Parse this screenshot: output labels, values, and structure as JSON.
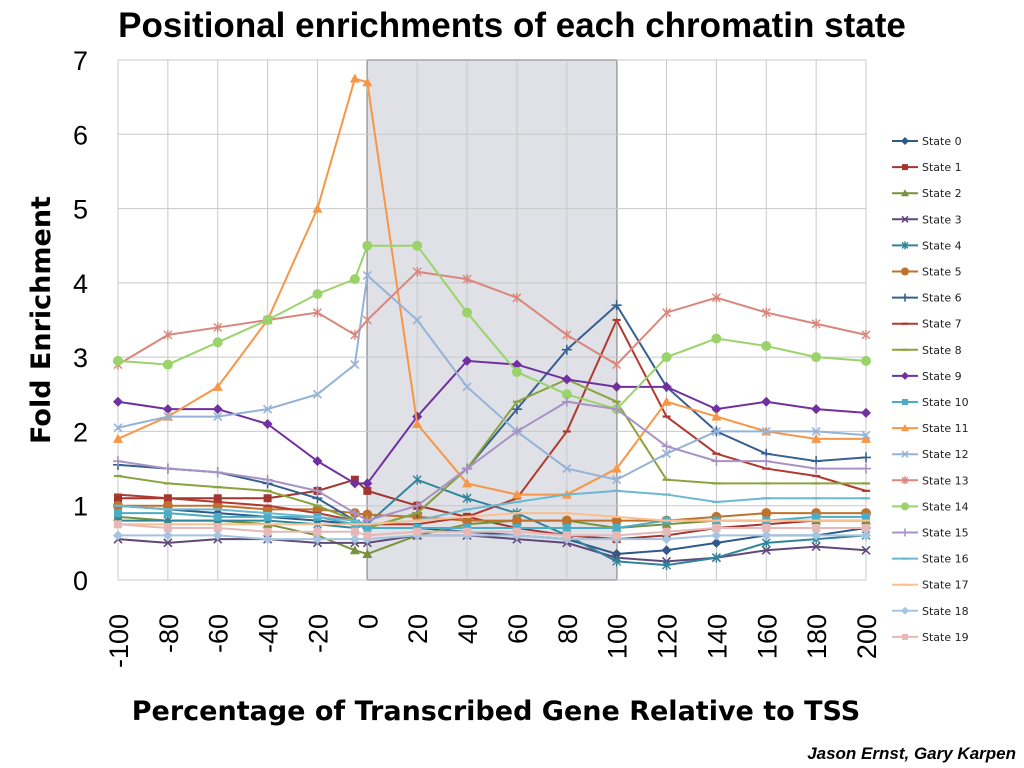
{
  "title": "Positional enrichments of each chromatin state",
  "credit": "Jason Ernst, Gary Karpen",
  "chart_data": {
    "type": "line",
    "title": "Positional enrichments of each chromatin state",
    "xlabel": "Percentage of Transcribed Gene Relative to TSS",
    "ylabel": "Fold Enrichment",
    "xlim": [
      -100,
      200
    ],
    "ylim": [
      0,
      7
    ],
    "xticks": [
      -100,
      -80,
      -60,
      -40,
      -20,
      0,
      20,
      40,
      60,
      80,
      100,
      120,
      140,
      160,
      180,
      200
    ],
    "yticks": [
      0,
      1,
      2,
      3,
      4,
      5,
      6,
      7
    ],
    "grid": true,
    "legend": "right",
    "shaded_region": [
      0,
      100
    ],
    "x": [
      -100,
      -80,
      -60,
      -40,
      -20,
      -5,
      0,
      20,
      40,
      60,
      80,
      100,
      120,
      140,
      160,
      180,
      200
    ],
    "series": [
      {
        "name": "State 0",
        "color": "#2e5a8a",
        "marker": "diamond",
        "values": [
          1.0,
          0.95,
          0.9,
          0.85,
          0.8,
          0.75,
          0.7,
          0.7,
          0.65,
          0.6,
          0.55,
          0.35,
          0.4,
          0.5,
          0.6,
          0.6,
          0.7
        ]
      },
      {
        "name": "State 1",
        "color": "#a3342e",
        "marker": "square",
        "values": [
          1.1,
          1.1,
          1.1,
          1.1,
          1.2,
          1.35,
          1.2,
          1.0,
          0.85,
          0.7,
          0.6,
          0.55,
          0.6,
          0.7,
          0.75,
          0.8,
          0.8
        ]
      },
      {
        "name": "State 2",
        "color": "#76923c",
        "marker": "triangle",
        "values": [
          0.85,
          0.8,
          0.8,
          0.75,
          0.6,
          0.4,
          0.35,
          0.6,
          0.75,
          0.8,
          0.8,
          0.7,
          0.75,
          0.8,
          0.8,
          0.8,
          0.8
        ]
      },
      {
        "name": "State 3",
        "color": "#5f497a",
        "marker": "x",
        "values": [
          0.55,
          0.5,
          0.55,
          0.55,
          0.5,
          0.5,
          0.5,
          0.6,
          0.6,
          0.55,
          0.5,
          0.3,
          0.25,
          0.3,
          0.4,
          0.45,
          0.4
        ]
      },
      {
        "name": "State 4",
        "color": "#31849b",
        "marker": "asterisk",
        "values": [
          0.8,
          0.8,
          0.8,
          0.8,
          0.75,
          0.7,
          0.75,
          1.35,
          1.1,
          0.9,
          0.6,
          0.25,
          0.2,
          0.3,
          0.5,
          0.55,
          0.6
        ]
      },
      {
        "name": "State 5",
        "color": "#c0722c",
        "marker": "circle",
        "values": [
          1.0,
          1.0,
          1.0,
          0.95,
          0.95,
          0.9,
          0.88,
          0.85,
          0.8,
          0.8,
          0.8,
          0.8,
          0.8,
          0.85,
          0.9,
          0.9,
          0.9
        ]
      },
      {
        "name": "State 6",
        "color": "#376092",
        "marker": "plus",
        "values": [
          1.55,
          1.5,
          1.45,
          1.3,
          1.1,
          0.8,
          0.7,
          0.9,
          1.5,
          2.3,
          3.1,
          3.7,
          2.6,
          2.0,
          1.7,
          1.6,
          1.65
        ]
      },
      {
        "name": "State 7",
        "color": "#b03a30",
        "marker": "dash",
        "values": [
          1.15,
          1.1,
          1.05,
          1.0,
          0.9,
          0.8,
          0.75,
          0.75,
          0.85,
          1.1,
          2.0,
          3.5,
          2.2,
          1.7,
          1.5,
          1.4,
          1.2
        ]
      },
      {
        "name": "State 8",
        "color": "#8aa33e",
        "marker": "dash",
        "values": [
          1.4,
          1.3,
          1.25,
          1.2,
          1.0,
          0.8,
          0.7,
          0.9,
          1.5,
          2.4,
          2.7,
          2.4,
          1.35,
          1.3,
          1.3,
          1.3,
          1.3
        ]
      },
      {
        "name": "State 9",
        "color": "#7030a0",
        "marker": "diamond",
        "values": [
          2.4,
          2.3,
          2.3,
          2.1,
          1.6,
          1.3,
          1.3,
          2.2,
          2.95,
          2.9,
          2.7,
          2.6,
          2.6,
          2.3,
          2.4,
          2.3,
          2.25
        ]
      },
      {
        "name": "State 10",
        "color": "#4bacc6",
        "marker": "square",
        "values": [
          0.9,
          0.9,
          0.85,
          0.85,
          0.85,
          0.75,
          0.7,
          0.7,
          0.7,
          0.7,
          0.7,
          0.7,
          0.8,
          0.8,
          0.8,
          0.85,
          0.85
        ]
      },
      {
        "name": "State 11",
        "color": "#f79646",
        "marker": "triangle",
        "values": [
          1.9,
          2.2,
          2.6,
          3.5,
          5.0,
          6.75,
          6.7,
          2.1,
          1.3,
          1.15,
          1.15,
          1.5,
          2.4,
          2.2,
          2.0,
          1.9,
          1.9
        ]
      },
      {
        "name": "State 12",
        "color": "#95b3d7",
        "marker": "x",
        "values": [
          2.05,
          2.2,
          2.2,
          2.3,
          2.5,
          2.9,
          4.1,
          3.5,
          2.6,
          2.0,
          1.5,
          1.35,
          1.7,
          2.0,
          2.0,
          2.0,
          1.95
        ]
      },
      {
        "name": "State 13",
        "color": "#d9877d",
        "marker": "asterisk",
        "values": [
          2.9,
          3.3,
          3.4,
          3.5,
          3.6,
          3.3,
          3.5,
          4.15,
          4.05,
          3.8,
          3.3,
          2.9,
          3.6,
          3.8,
          3.6,
          3.45,
          3.3
        ]
      },
      {
        "name": "State 14",
        "color": "#9bd36b",
        "marker": "circle",
        "values": [
          2.95,
          2.9,
          3.2,
          3.5,
          3.85,
          4.05,
          4.5,
          4.5,
          3.6,
          2.8,
          2.5,
          2.3,
          3.0,
          3.25,
          3.15,
          3.0,
          2.95
        ]
      },
      {
        "name": "State 15",
        "color": "#a893c4",
        "marker": "plus",
        "values": [
          1.6,
          1.5,
          1.45,
          1.35,
          1.2,
          0.9,
          0.8,
          1.0,
          1.5,
          2.0,
          2.4,
          2.3,
          1.8,
          1.6,
          1.6,
          1.5,
          1.5
        ]
      },
      {
        "name": "State 16",
        "color": "#6cb8d0",
        "marker": "dash",
        "values": [
          1.0,
          0.95,
          0.95,
          0.9,
          0.85,
          0.8,
          0.75,
          0.8,
          0.95,
          1.05,
          1.15,
          1.2,
          1.15,
          1.05,
          1.1,
          1.1,
          1.1
        ]
      },
      {
        "name": "State 17",
        "color": "#fac090",
        "marker": "dash",
        "values": [
          0.75,
          0.75,
          0.75,
          0.75,
          0.75,
          0.75,
          0.75,
          0.8,
          0.85,
          0.9,
          0.9,
          0.85,
          0.8,
          0.8,
          0.8,
          0.8,
          0.8
        ]
      },
      {
        "name": "State 18",
        "color": "#a6c4e0",
        "marker": "diamond",
        "values": [
          0.6,
          0.6,
          0.6,
          0.55,
          0.55,
          0.55,
          0.55,
          0.6,
          0.6,
          0.6,
          0.55,
          0.55,
          0.55,
          0.6,
          0.6,
          0.6,
          0.6
        ]
      },
      {
        "name": "State 19",
        "color": "#e6b9b8",
        "marker": "square",
        "values": [
          0.75,
          0.7,
          0.7,
          0.65,
          0.65,
          0.65,
          0.6,
          0.65,
          0.65,
          0.65,
          0.6,
          0.6,
          0.65,
          0.7,
          0.7,
          0.7,
          0.7
        ]
      }
    ]
  }
}
